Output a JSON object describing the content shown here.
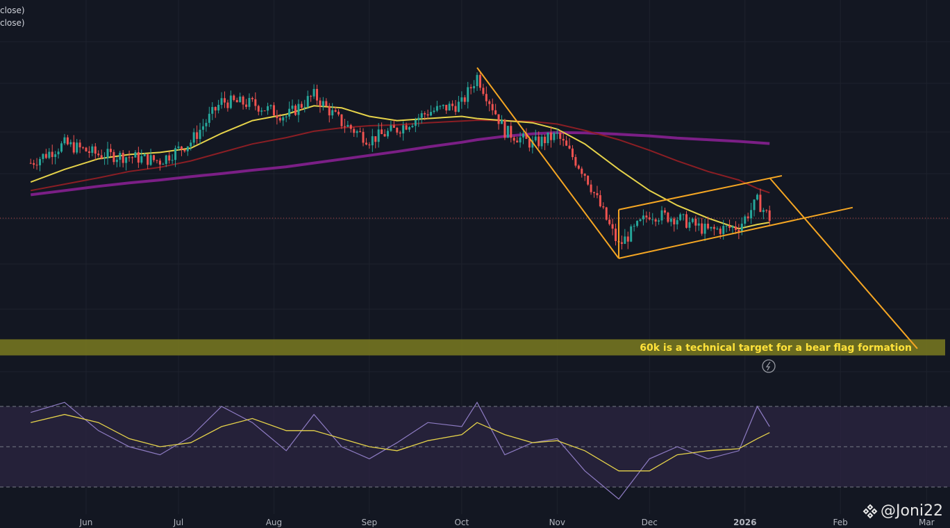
{
  "legend": {
    "line1": "close)",
    "line2": "close)"
  },
  "watermark": {
    "text": "@Joni22"
  },
  "colors": {
    "background": "#131722",
    "grid": "#1e222d",
    "up": "#26a69a",
    "down": "#ef5350",
    "ma_yellow": "#e6d34a",
    "ma_red": "#8b1e24",
    "ma_purple": "#7b1f86",
    "trendline": "#f5a623",
    "rsi": "#8e7cc3",
    "rsi_ma": "#e6d34a",
    "rsi_band": "#2a2440",
    "target_band": "#7a7a20"
  },
  "chart_data": [
    {
      "type": "line",
      "title": "",
      "x_ticks": [
        "Jun",
        "Jul",
        "Aug",
        "Sep",
        "Oct",
        "Nov",
        "Dec",
        "2026",
        "Feb",
        "Mar"
      ],
      "annotation": "60k is a technical target for a bear flag formation",
      "pattern": "bear flag",
      "x": [
        "May 14",
        "May 25",
        "Jun 5",
        "Jun 15",
        "Jun 25",
        "Jul 5",
        "Jul 15",
        "Jul 25",
        "Aug 5",
        "Aug 14",
        "Aug 23",
        "Sep 1",
        "Sep 10",
        "Sep 20",
        "Oct 1",
        "Oct 6",
        "Oct 15",
        "Oct 24",
        "Nov 1",
        "Nov 10",
        "Nov 21",
        "Dec 1",
        "Dec 10",
        "Dec 20",
        "Dec 30",
        "Jan 5",
        "Jan 9"
      ],
      "series": [
        {
          "values": [
            103500,
            108000,
            105500,
            105000,
            104000,
            108500,
            118000,
            117500,
            114500,
            119500,
            113000,
            109000,
            111500,
            115500,
            117500,
            124000,
            111000,
            108000,
            110000,
            101000,
            84000,
            91500,
            90500,
            87500,
            88500,
            94500,
            90500
          ]
        },
        {
          "values": [
            99000,
            102000,
            104500,
            105500,
            106000,
            107000,
            110500,
            113500,
            115000,
            117000,
            116500,
            114500,
            113500,
            114000,
            114500,
            114000,
            113500,
            113000,
            111500,
            108000,
            102000,
            97000,
            93500,
            90500,
            88000,
            89000,
            89500
          ]
        },
        {
          "values": [
            97000,
            98500,
            100000,
            101500,
            102500,
            104000,
            106000,
            108000,
            109500,
            111000,
            111800,
            112300,
            112500,
            113000,
            113400,
            113600,
            113500,
            113300,
            112700,
            111200,
            109000,
            106500,
            104000,
            101500,
            99500,
            97500,
            96500
          ]
        },
        {
          "values": [
            96000,
            97000,
            98000,
            98800,
            99500,
            100300,
            101000,
            101800,
            102600,
            103500,
            104400,
            105300,
            106200,
            107300,
            108400,
            109000,
            109800,
            110400,
            110700,
            110600,
            110300,
            109900,
            109400,
            109000,
            108600,
            108300,
            108100
          ]
        }
      ],
      "ohlc": [
        {
          "x": "Oct 6",
          "high": 126000
        },
        {
          "x": "Nov 21",
          "low": 80600
        },
        {
          "x": "Jan 9",
          "high": 97900
        }
      ]
    },
    {
      "type": "line",
      "title": "",
      "x": [
        "May 14",
        "May 25",
        "Jun 5",
        "Jun 15",
        "Jun 25",
        "Jul 5",
        "Jul 15",
        "Jul 25",
        "Aug 5",
        "Aug 14",
        "Aug 23",
        "Sep 1",
        "Sep 10",
        "Sep 20",
        "Oct 1",
        "Oct 6",
        "Oct 15",
        "Oct 24",
        "Nov 1",
        "Nov 10",
        "Nov 21",
        "Dec 1",
        "Dec 10",
        "Dec 20",
        "Dec 30",
        "Jan 5",
        "Jan 9"
      ],
      "series": [
        {
          "values": [
            67,
            72,
            58,
            50,
            46,
            55,
            70,
            62,
            48,
            66,
            50,
            44,
            52,
            62,
            60,
            72,
            46,
            52,
            54,
            38,
            24,
            44,
            50,
            44,
            48,
            70,
            60
          ]
        },
        {
          "values": [
            62,
            66,
            62,
            54,
            50,
            52,
            60,
            64,
            58,
            58,
            54,
            50,
            48,
            53,
            56,
            62,
            56,
            52,
            53,
            48,
            38,
            38,
            46,
            48,
            49,
            54,
            57
          ]
        }
      ],
      "bands": [
        70,
        50,
        30
      ]
    }
  ]
}
